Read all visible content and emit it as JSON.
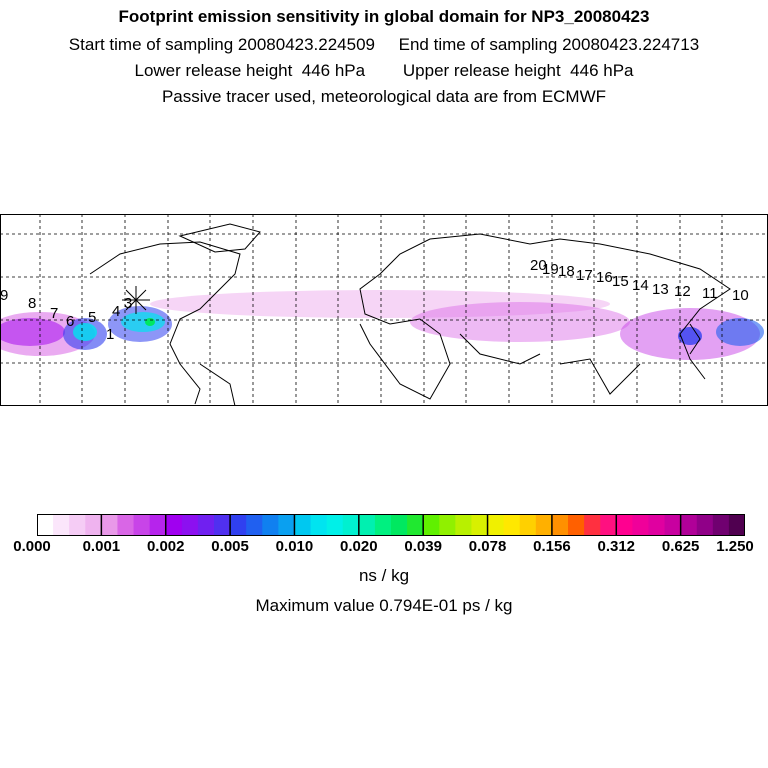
{
  "header": {
    "title": "Footprint emission sensitivity in global domain for NP3_20080423",
    "line2": "Start time of sampling 20080423.224509     End time of sampling 20080423.224713",
    "line3": "Lower release height  446 hPa        Upper release height  446 hPa",
    "line4": "Passive tracer used, meteorological data are from ECMWF"
  },
  "map": {
    "trajectory_labels": [
      "1",
      "3",
      "4",
      "5",
      "6",
      "7",
      "8",
      "9",
      "10",
      "11",
      "12",
      "13",
      "14",
      "15",
      "16",
      "17",
      "18",
      "19",
      "20"
    ],
    "release_marker": "x-marker"
  },
  "colorbar": {
    "tick_labels": [
      "0.000",
      "0.001",
      "0.002",
      "0.005",
      "0.010",
      "0.020",
      "0.039",
      "0.078",
      "0.156",
      "0.312",
      "0.625",
      "1.250"
    ],
    "colors": [
      "#ffffff",
      "#fbe6fb",
      "#f5ccf5",
      "#efb3ef",
      "#e999e9",
      "#d966e6",
      "#c844e8",
      "#b624ec",
      "#a000f0",
      "#8c10f0",
      "#7020f0",
      "#5030f0",
      "#3040f0",
      "#2060f0",
      "#1080f0",
      "#0aa0f0",
      "#00c8f0",
      "#00e4f0",
      "#00f0e8",
      "#00f0d0",
      "#00f0b0",
      "#00f080",
      "#00e860",
      "#20e830",
      "#60f000",
      "#90f000",
      "#b8f000",
      "#d8f000",
      "#f0f000",
      "#ffe800",
      "#ffd000",
      "#ffb000",
      "#ff9000",
      "#ff6000",
      "#ff3040",
      "#ff1080",
      "#ff0090",
      "#f0009a",
      "#e000a0",
      "#c800a0",
      "#b00098",
      "#900088",
      "#700070",
      "#500050"
    ],
    "unit": "ns / kg",
    "max_value": "Maximum value  0.794E-01 ps / kg"
  }
}
